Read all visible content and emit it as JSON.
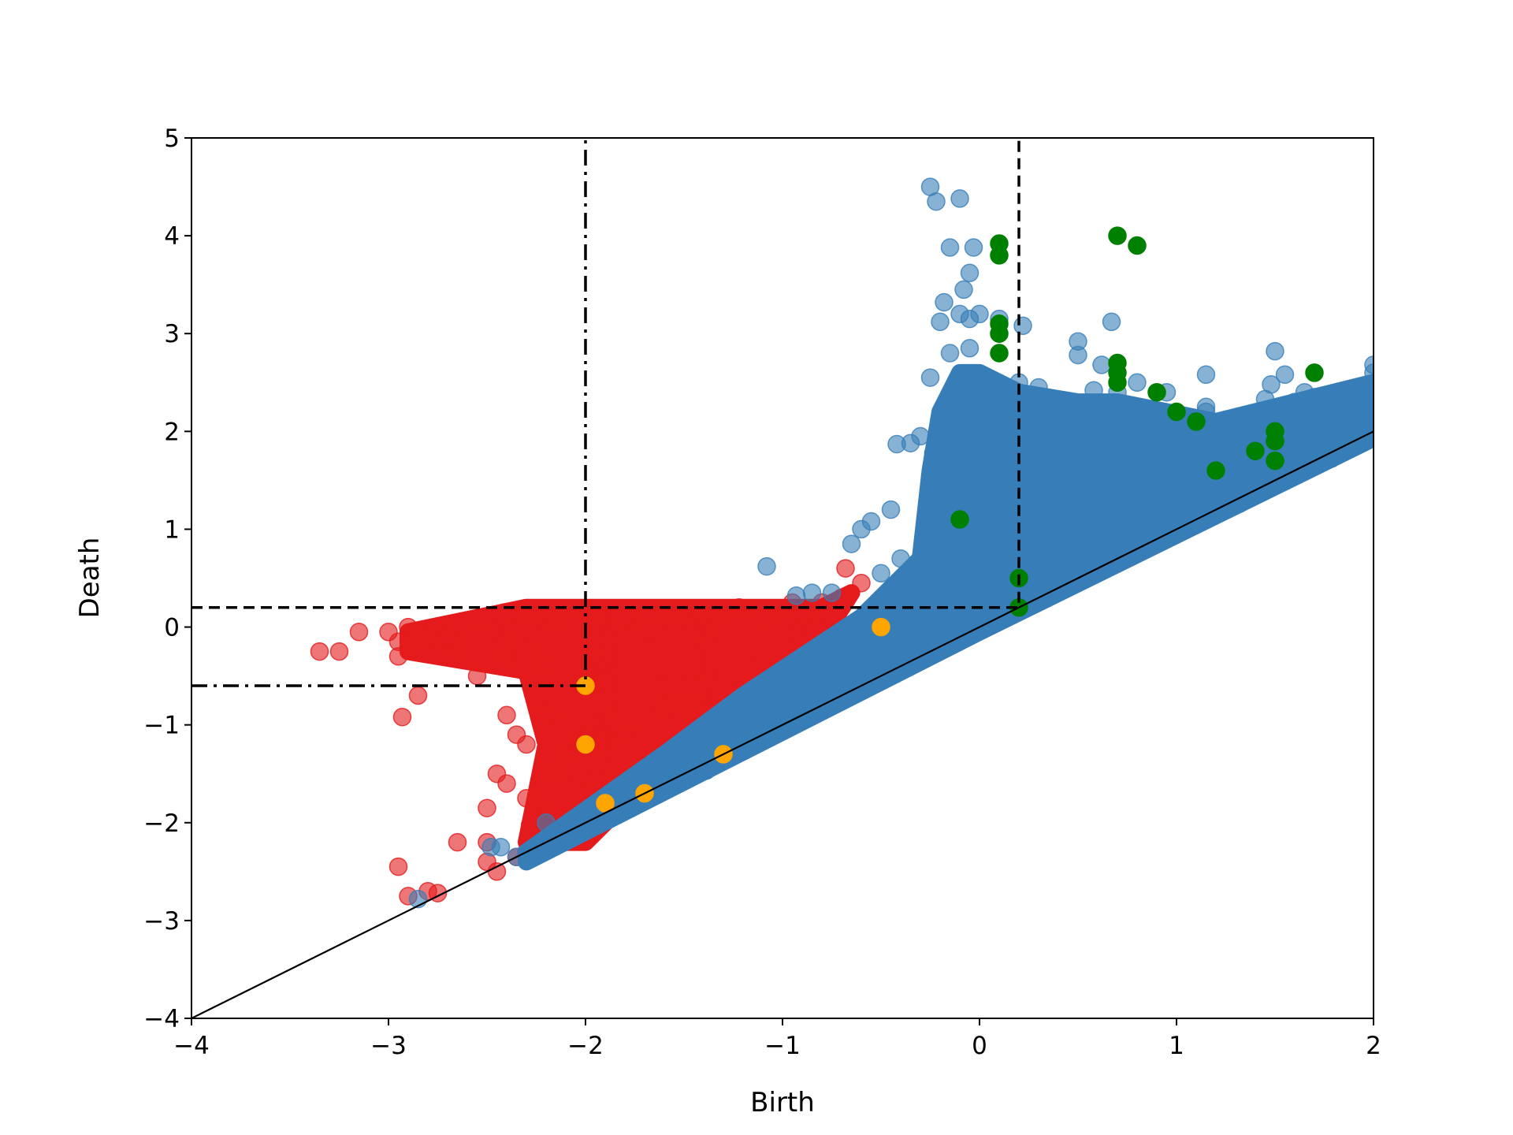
{
  "chart_data": {
    "type": "scatter",
    "title": "",
    "xlabel": "Birth",
    "ylabel": "Death",
    "xlim": [
      -4,
      2
    ],
    "ylim": [
      -4,
      5
    ],
    "xticks": [
      -4,
      -3,
      -2,
      -1,
      0,
      1,
      2
    ],
    "xtick_labels": [
      "−4",
      "−3",
      "−2",
      "−1",
      "0",
      "1",
      "2"
    ],
    "yticks": [
      -4,
      -3,
      -2,
      -1,
      0,
      1,
      2,
      3,
      4,
      5
    ],
    "ytick_labels": [
      "−4",
      "−3",
      "−2",
      "−1",
      "0",
      "1",
      "2",
      "3",
      "4",
      "5"
    ],
    "grid": false,
    "colors": {
      "red_series": "#e41a1c",
      "blue_series": "#377eb8",
      "orange_series": "#ffa500",
      "green_series": "#008000",
      "reference_lines": "#000000"
    },
    "diagonal": {
      "from": [
        -4,
        -4
      ],
      "to": [
        2,
        2
      ]
    },
    "reference_lines": [
      {
        "style": "dashed",
        "points": [
          [
            -4,
            0.2
          ],
          [
            0.2,
            0.2
          ],
          [
            0.2,
            5
          ]
        ]
      },
      {
        "style": "dashdot",
        "points": [
          [
            -4,
            -0.6
          ],
          [
            -2,
            -0.6
          ],
          [
            -2,
            5
          ]
        ]
      }
    ],
    "series": [
      {
        "name": "red",
        "color": "#e41a1c",
        "alpha": 0.6,
        "dense_region": [
          [
            -2.9,
            -0.05
          ],
          [
            -2.3,
            0.2
          ],
          [
            -0.8,
            0.2
          ],
          [
            -0.65,
            0.35
          ],
          [
            -1.0,
            -0.75
          ],
          [
            -1.6,
            -1.4
          ],
          [
            -2.0,
            -2.2
          ],
          [
            -2.3,
            -2.2
          ],
          [
            -2.2,
            -1.2
          ],
          [
            -2.3,
            -0.45
          ],
          [
            -2.9,
            -0.25
          ]
        ],
        "points": [
          [
            -3.35,
            -0.25
          ],
          [
            -3.25,
            -0.25
          ],
          [
            -3.15,
            -0.05
          ],
          [
            -3.0,
            -0.05
          ],
          [
            -2.95,
            -0.15
          ],
          [
            -2.95,
            -0.3
          ],
          [
            -2.9,
            0.0
          ],
          [
            -2.85,
            -0.05
          ],
          [
            -2.8,
            -0.1
          ],
          [
            -2.75,
            0.0
          ],
          [
            -2.7,
            -0.1
          ],
          [
            -2.65,
            -0.25
          ],
          [
            -2.55,
            -0.5
          ],
          [
            -2.85,
            -0.7
          ],
          [
            -2.93,
            -0.92
          ],
          [
            -2.4,
            -0.9
          ],
          [
            -2.35,
            -1.1
          ],
          [
            -2.45,
            -1.5
          ],
          [
            -2.4,
            -1.6
          ],
          [
            -2.5,
            -1.85
          ],
          [
            -2.95,
            -2.45
          ],
          [
            -2.9,
            -2.75
          ],
          [
            -2.8,
            -2.7
          ],
          [
            -2.75,
            -2.72
          ],
          [
            -2.65,
            -2.2
          ],
          [
            -2.5,
            -2.2
          ],
          [
            -2.5,
            -2.4
          ],
          [
            -2.45,
            -2.5
          ],
          [
            -2.35,
            -2.35
          ],
          [
            -2.3,
            -2.3
          ],
          [
            -2.2,
            -2.1
          ],
          [
            -2.1,
            -2.05
          ],
          [
            -2.0,
            -1.95
          ],
          [
            -2.2,
            -1.9
          ],
          [
            -2.3,
            -1.75
          ],
          [
            -2.15,
            -1.5
          ],
          [
            -2.1,
            -1.3
          ],
          [
            -2.3,
            -1.2
          ],
          [
            -2.2,
            -0.9
          ],
          [
            -2.2,
            -0.4
          ],
          [
            -2.4,
            -0.3
          ],
          [
            -2.3,
            0.15
          ],
          [
            -2.15,
            0.1
          ],
          [
            -2.0,
            0.15
          ],
          [
            -1.8,
            0.1
          ],
          [
            -1.6,
            0.15
          ],
          [
            -1.5,
            0.15
          ],
          [
            -1.35,
            0.12
          ],
          [
            -1.22,
            0.2
          ],
          [
            -1.1,
            0.1
          ],
          [
            -0.95,
            0.25
          ],
          [
            -0.9,
            0.12
          ],
          [
            -0.8,
            0.25
          ],
          [
            -0.7,
            0.3
          ],
          [
            -0.68,
            0.6
          ],
          [
            -0.6,
            0.45
          ],
          [
            -1.6,
            -0.8
          ],
          [
            -1.45,
            -0.8
          ],
          [
            -1.8,
            -1.1
          ],
          [
            -1.65,
            -1.3
          ],
          [
            -1.85,
            -1.6
          ],
          [
            -1.9,
            -1.8
          ],
          [
            -1.75,
            -1.75
          ],
          [
            -1.55,
            -1.55
          ],
          [
            -1.3,
            -1.3
          ],
          [
            -1.1,
            -1.1
          ],
          [
            -0.9,
            -0.9
          ]
        ]
      },
      {
        "name": "blue",
        "color": "#377eb8",
        "alpha": 0.6,
        "dense_region": [
          [
            -2.3,
            -2.3
          ],
          [
            -1.6,
            -1.3
          ],
          [
            -1.2,
            -0.7
          ],
          [
            -0.6,
            0.1
          ],
          [
            -0.3,
            0.7
          ],
          [
            -0.25,
            1.6
          ],
          [
            -0.2,
            2.2
          ],
          [
            -0.1,
            2.6
          ],
          [
            0.0,
            2.6
          ],
          [
            0.2,
            2.4
          ],
          [
            0.5,
            2.3
          ],
          [
            0.7,
            2.3
          ],
          [
            1.2,
            2.1
          ],
          [
            1.6,
            2.3
          ],
          [
            2.0,
            2.5
          ],
          [
            2.0,
            1.93
          ],
          [
            0.0,
            -0.05
          ],
          [
            -2.3,
            -2.4
          ]
        ],
        "points": [
          [
            -0.25,
            4.5
          ],
          [
            -0.22,
            4.35
          ],
          [
            -0.1,
            4.38
          ],
          [
            -0.15,
            3.88
          ],
          [
            -0.03,
            3.88
          ],
          [
            -0.05,
            3.62
          ],
          [
            -0.08,
            3.45
          ],
          [
            -0.18,
            3.32
          ],
          [
            -0.1,
            3.2
          ],
          [
            -0.05,
            3.15
          ],
          [
            -0.2,
            3.12
          ],
          [
            0.0,
            3.2
          ],
          [
            0.1,
            3.15
          ],
          [
            0.22,
            3.08
          ],
          [
            -0.15,
            2.8
          ],
          [
            -0.05,
            2.85
          ],
          [
            -0.25,
            2.55
          ],
          [
            0.5,
            2.92
          ],
          [
            0.5,
            2.78
          ],
          [
            0.67,
            3.12
          ],
          [
            0.62,
            2.68
          ],
          [
            0.58,
            2.42
          ],
          [
            0.8,
            2.5
          ],
          [
            0.7,
            2.4
          ],
          [
            0.95,
            2.4
          ],
          [
            1.15,
            2.25
          ],
          [
            1.15,
            2.2
          ],
          [
            1.15,
            2.58
          ],
          [
            1.45,
            2.33
          ],
          [
            1.48,
            2.48
          ],
          [
            1.5,
            2.82
          ],
          [
            1.55,
            2.58
          ],
          [
            1.6,
            2.3
          ],
          [
            1.65,
            2.4
          ],
          [
            1.7,
            2.35
          ],
          [
            1.75,
            2.35
          ],
          [
            1.85,
            2.3
          ],
          [
            2.0,
            2.6
          ],
          [
            2.0,
            2.68
          ],
          [
            0.3,
            2.45
          ],
          [
            0.4,
            2.3
          ],
          [
            0.2,
            2.5
          ],
          [
            -0.35,
            1.88
          ],
          [
            -0.42,
            1.87
          ],
          [
            -0.3,
            1.95
          ],
          [
            -0.45,
            1.2
          ],
          [
            -0.6,
            1.0
          ],
          [
            -0.55,
            1.08
          ],
          [
            -0.65,
            0.85
          ],
          [
            -1.08,
            0.62
          ],
          [
            -0.85,
            0.35
          ],
          [
            -0.93,
            0.32
          ],
          [
            -0.75,
            0.35
          ],
          [
            -0.3,
            0.6
          ],
          [
            -0.5,
            0.55
          ],
          [
            -0.4,
            0.7
          ],
          [
            -0.2,
            1.0
          ],
          [
            -0.15,
            1.5
          ],
          [
            -2.48,
            -2.25
          ],
          [
            -2.43,
            -2.25
          ],
          [
            -2.35,
            -2.35
          ],
          [
            -2.85,
            -2.78
          ],
          [
            -2.2,
            -2.0
          ],
          [
            -2.0,
            -2.0
          ],
          [
            -1.8,
            -1.85
          ],
          [
            -1.6,
            -1.55
          ],
          [
            -1.5,
            -1.35
          ],
          [
            -1.35,
            -1.2
          ],
          [
            -1.1,
            -1.0
          ],
          [
            -0.9,
            -0.7
          ],
          [
            -0.7,
            -0.45
          ],
          [
            -0.5,
            -0.25
          ]
        ]
      },
      {
        "name": "orange",
        "color": "#ffa500",
        "alpha": 1.0,
        "points": [
          [
            -2.0,
            -0.6
          ],
          [
            -2.0,
            -1.2
          ],
          [
            -1.9,
            -1.8
          ],
          [
            -1.7,
            -1.7
          ],
          [
            -1.3,
            -1.3
          ],
          [
            -0.5,
            0.0
          ]
        ]
      },
      {
        "name": "green",
        "color": "#008000",
        "alpha": 1.0,
        "points": [
          [
            0.1,
            3.92
          ],
          [
            0.1,
            3.8
          ],
          [
            0.1,
            3.1
          ],
          [
            0.1,
            3.0
          ],
          [
            0.1,
            2.8
          ],
          [
            0.7,
            4.0
          ],
          [
            0.8,
            3.9
          ],
          [
            0.7,
            2.7
          ],
          [
            0.7,
            2.6
          ],
          [
            0.7,
            2.5
          ],
          [
            0.9,
            2.4
          ],
          [
            1.0,
            2.2
          ],
          [
            1.1,
            2.1
          ],
          [
            1.5,
            2.0
          ],
          [
            1.5,
            1.9
          ],
          [
            1.4,
            1.8
          ],
          [
            1.5,
            1.7
          ],
          [
            1.2,
            1.6
          ],
          [
            1.7,
            2.6
          ],
          [
            -0.1,
            1.1
          ],
          [
            0.2,
            0.5
          ],
          [
            0.2,
            0.2
          ]
        ]
      }
    ]
  }
}
